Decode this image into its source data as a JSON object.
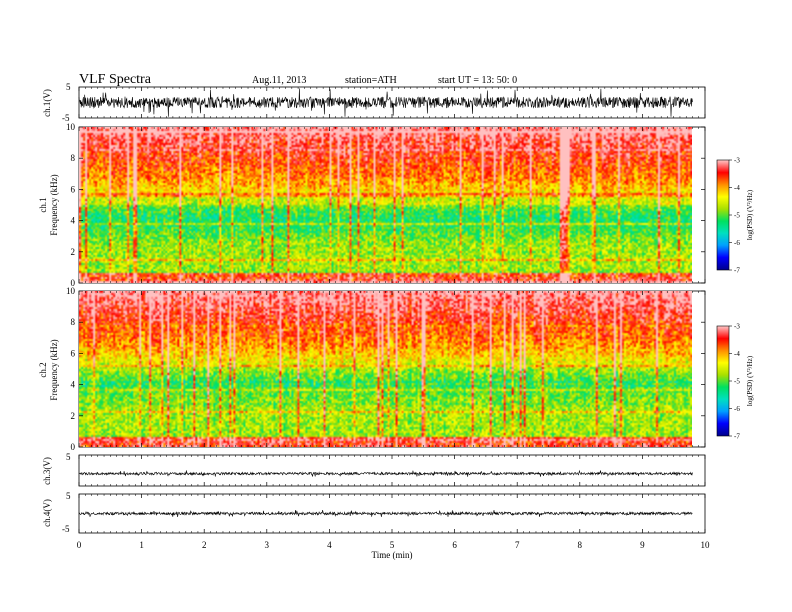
{
  "header": {
    "title": "VLF  Spectra",
    "date": "Aug.11, 2013",
    "station": "station=ATH",
    "start": "start  UT =   13: 50: 0"
  },
  "chart_data": [
    {
      "type": "line",
      "id": "panel-ch1-waveform",
      "ylabel": "ch.1(V)",
      "ylim": [
        -5,
        5
      ],
      "yticks": [
        "5",
        "-5"
      ],
      "x_range_min": [
        0,
        9.8
      ],
      "series": [
        {
          "name": "ch.1",
          "noise_amplitude_v": 1.8
        }
      ]
    },
    {
      "type": "heatmap",
      "id": "panel-ch1-spectrogram",
      "ylabel_top": "ch.1",
      "ylabel": "Frequency  (kHz)",
      "ylim": [
        0,
        10
      ],
      "yticks": [
        "0",
        "2",
        "4",
        "6",
        "8",
        "10"
      ],
      "x_range_min": [
        0,
        9.8
      ],
      "colorbar": {
        "label": "log(PSD) (V²/Hz)",
        "ticks": [
          "-3",
          "-4",
          "-5",
          "-6",
          "-7"
        ],
        "range": [
          -7,
          -3
        ]
      },
      "colormap": [
        "#000090",
        "#0000ff",
        "#00a0ff",
        "#00e0c0",
        "#00e060",
        "#a8e000",
        "#ffff00",
        "#ff9000",
        "#ff0000",
        "#ffc0c0"
      ]
    },
    {
      "type": "heatmap",
      "id": "panel-ch2-spectrogram",
      "ylabel_top": "ch.2",
      "ylabel": "Frequency  (kHz)",
      "ylim": [
        0,
        10
      ],
      "yticks": [
        "0",
        "2",
        "4",
        "6",
        "8",
        "10"
      ],
      "x_range_min": [
        0,
        9.8
      ],
      "colorbar": {
        "label": "log(PSD) (V²/Hz)",
        "ticks": [
          "-3",
          "-4",
          "-5",
          "-6",
          "-7"
        ],
        "range": [
          -7,
          -3
        ]
      },
      "colormap": [
        "#000090",
        "#0000ff",
        "#00a0ff",
        "#00e0c0",
        "#00e060",
        "#a8e000",
        "#ffff00",
        "#ff9000",
        "#ff0000",
        "#ffc0c0"
      ]
    },
    {
      "type": "line",
      "id": "panel-ch3-waveform",
      "ylabel": "ch.3(V)",
      "ylim": [
        -5,
        5
      ],
      "yticks": [
        "5",
        "-5"
      ],
      "x_range_min": [
        0,
        9.8
      ],
      "series": [
        {
          "name": "ch.3",
          "baseline_v": -1.0,
          "noise_amplitude_v": 0.4
        }
      ]
    },
    {
      "type": "line",
      "id": "panel-ch4-waveform",
      "ylabel": "ch.4(V)",
      "ylim": [
        -5,
        5
      ],
      "yticks": [
        "5",
        "-5"
      ],
      "x_range_min": [
        0,
        9.8
      ],
      "series": [
        {
          "name": "ch.4",
          "baseline_v": 0.0,
          "noise_amplitude_v": 0.35
        }
      ]
    }
  ],
  "x_axis": {
    "label": "Time  (min)",
    "range": [
      0,
      10
    ],
    "ticks": [
      "0",
      "1",
      "2",
      "3",
      "4",
      "5",
      "6",
      "7",
      "8",
      "9",
      "10"
    ]
  }
}
